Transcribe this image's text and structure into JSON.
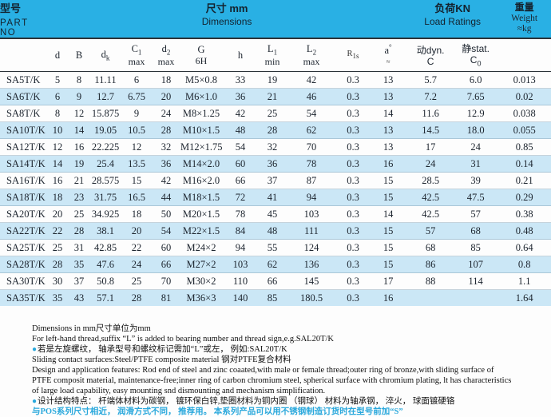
{
  "header": {
    "part_no_zh": "型号",
    "part_no_en": "PART NO",
    "dimensions_zh": "尺寸 mm",
    "dimensions_en": "Dimensions",
    "load_zh": "负荷KN",
    "load_en": "Load Ratings",
    "weight_zh": "重量",
    "weight_en": "Weight",
    "weight_unit": "≈kg"
  },
  "columns": [
    {
      "top": "d"
    },
    {
      "top": "B"
    },
    {
      "top": "d",
      "topsub": "k"
    },
    {
      "top": "C",
      "topsub": "1",
      "bottom": "max"
    },
    {
      "top": "d",
      "topsub": "2",
      "bottom": "max"
    },
    {
      "top": "G",
      "bottom": "6H"
    },
    {
      "top": "h"
    },
    {
      "top": "L",
      "topsub": "1",
      "bottom": "min"
    },
    {
      "top": "L",
      "topsub": "2",
      "bottom": "max"
    },
    {
      "top": "R",
      "topsub": "1s",
      "cls": "small"
    },
    {
      "top": "a",
      "topsup": "°",
      "bottom": "≈",
      "cls": "approx"
    },
    {
      "top": "动dyn.",
      "bottom": "C",
      "cls": "sans"
    },
    {
      "top": "静stat.",
      "bottom": "C",
      "bottomsub": "0",
      "cls": "sans"
    }
  ],
  "rows": [
    [
      "SA5T/K",
      "5",
      "8",
      "11.11",
      "6",
      "18",
      "M5×0.8",
      "33",
      "19",
      "42",
      "0.3",
      "13",
      "5.7",
      "6.0",
      "0.013"
    ],
    [
      "SA6T/K",
      "6",
      "9",
      "12.7",
      "6.75",
      "20",
      "M6×1.0",
      "36",
      "21",
      "46",
      "0.3",
      "13",
      "7.2",
      "7.65",
      "0.02"
    ],
    [
      "SA8T/K",
      "8",
      "12",
      "15.875",
      "9",
      "24",
      "M8×1.25",
      "42",
      "25",
      "54",
      "0.3",
      "14",
      "11.6",
      "12.9",
      "0.038"
    ],
    [
      "SA10T/K",
      "10",
      "14",
      "19.05",
      "10.5",
      "28",
      "M10×1.5",
      "48",
      "28",
      "62",
      "0.3",
      "13",
      "14.5",
      "18.0",
      "0.055"
    ],
    [
      "SA12T/K",
      "12",
      "16",
      "22.225",
      "12",
      "32",
      "M12×1.75",
      "54",
      "32",
      "70",
      "0.3",
      "13",
      "17",
      "24",
      "0.85"
    ],
    [
      "SA14T/K",
      "14",
      "19",
      "25.4",
      "13.5",
      "36",
      "M14×2.0",
      "60",
      "36",
      "78",
      "0.3",
      "16",
      "24",
      "31",
      "0.14"
    ],
    [
      "SA16T/K",
      "16",
      "21",
      "28.575",
      "15",
      "42",
      "M16×2.0",
      "66",
      "37",
      "87",
      "0.3",
      "15",
      "28.5",
      "39",
      "0.21"
    ],
    [
      "SA18T/K",
      "18",
      "23",
      "31.75",
      "16.5",
      "44",
      "M18×1.5",
      "72",
      "41",
      "94",
      "0.3",
      "15",
      "42.5",
      "47.5",
      "0.29"
    ],
    [
      "SA20T/K",
      "20",
      "25",
      "34.925",
      "18",
      "50",
      "M20×1.5",
      "78",
      "45",
      "103",
      "0.3",
      "14",
      "42.5",
      "57",
      "0.38"
    ],
    [
      "SA22T/K",
      "22",
      "28",
      "38.1",
      "20",
      "54",
      "M22×1.5",
      "84",
      "48",
      "111",
      "0.3",
      "15",
      "57",
      "68",
      "0.48"
    ],
    [
      "SA25T/K",
      "25",
      "31",
      "42.85",
      "22",
      "60",
      "M24×2",
      "94",
      "55",
      "124",
      "0.3",
      "15",
      "68",
      "85",
      "0.64"
    ],
    [
      "SA28T/K",
      "28",
      "35",
      "47.6",
      "24",
      "66",
      "M27×2",
      "103",
      "62",
      "136",
      "0.3",
      "15",
      "86",
      "107",
      "0.8"
    ],
    [
      "SA30T/K",
      "30",
      "37",
      "50.8",
      "25",
      "70",
      "M30×2",
      "110",
      "66",
      "145",
      "0.3",
      "17",
      "88",
      "114",
      "1.1"
    ],
    [
      "SA35T/K",
      "35",
      "43",
      "57.1",
      "28",
      "81",
      "M36×3",
      "140",
      "85",
      "180.5",
      "0.3",
      "16",
      "",
      "",
      "1.64"
    ]
  ],
  "footer": {
    "lines": [
      {
        "bullet": false,
        "accent": false,
        "text": "Dimensions in mm尺寸单位为mm"
      },
      {
        "bullet": false,
        "accent": false,
        "text": "For left-hand thread,suffix “L” is added to bearing number and thread sign,e.g.SAL20T/K"
      },
      {
        "bullet": true,
        "accent": false,
        "text": "若是左旋螺纹， 轴承型号和螺纹标记需加“L”或左， 例如:SAL20T/K"
      },
      {
        "bullet": false,
        "accent": false,
        "text": "Sliding contact surfaces:Steel/PTFE composite material 钢对PTFE复合材料"
      },
      {
        "bullet": false,
        "accent": false,
        "text": "Design and application features: Rod end of steel and zinc coaated,with male or female thread;outer ring of bronze,with sliding surface of"
      },
      {
        "bullet": false,
        "accent": false,
        "text": "PTFE composit material, maintenance-free;inner ring of carbon chromium steel, spherical surface with chromium plating, lt has characteristics"
      },
      {
        "bullet": false,
        "accent": false,
        "text": "of large load capability, easy mounting snd dismounting and  mechanism simplification."
      },
      {
        "bullet": true,
        "accent": false,
        "text": "设计结构特点： 杆端体材料为碳钢， 镀环保白锌,垫圈材料为铜内圈 （钢球） 材料为轴承钢， 淬火， 球面镀硬铬"
      },
      {
        "bullet": false,
        "accent": true,
        "text": "与POS系列尺寸相近， 润滑方式不同， 推荐用。 本系列产品可以用不锈钢制造订货时在型号前加“S”"
      }
    ]
  },
  "colors": {
    "band_cyan": "#29b0e4",
    "row_alt": "#cbe7f6",
    "accent_text": "#29a8dc"
  }
}
